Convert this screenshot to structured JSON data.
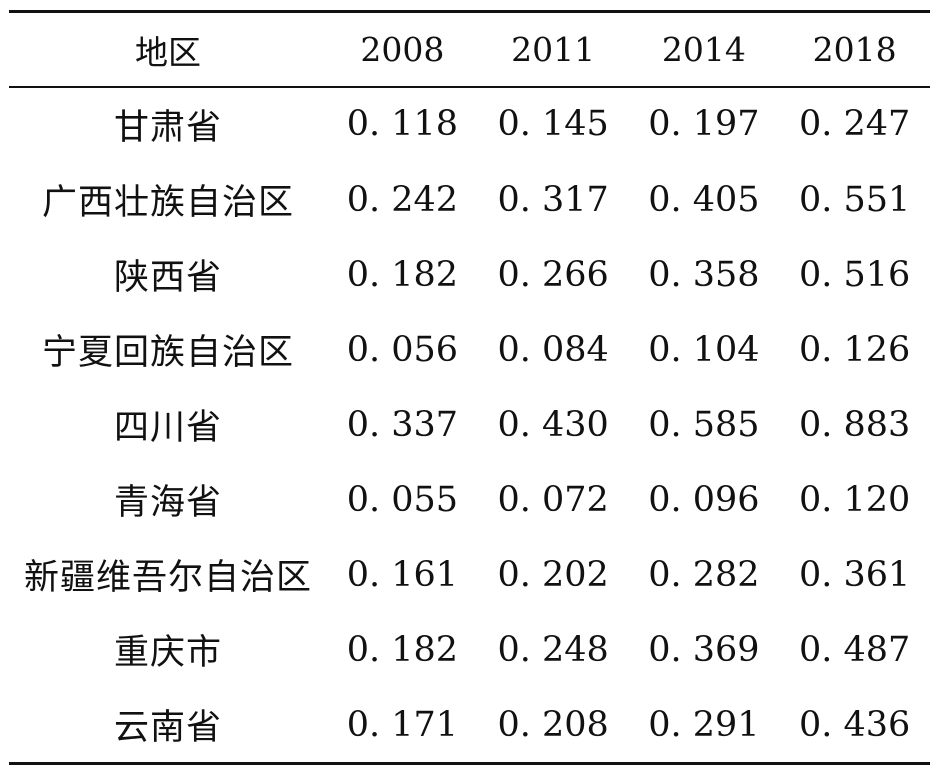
{
  "table": {
    "columns": [
      "地区",
      "2008",
      "2011",
      "2014",
      "2018"
    ],
    "rows": [
      [
        "甘肃省",
        "0. 118",
        "0. 145",
        "0. 197",
        "0. 247"
      ],
      [
        "广西壮族自治区",
        "0. 242",
        "0. 317",
        "0. 405",
        "0. 551"
      ],
      [
        "陕西省",
        "0. 182",
        "0. 266",
        "0. 358",
        "0. 516"
      ],
      [
        "宁夏回族自治区",
        "0. 056",
        "0. 084",
        "0. 104",
        "0. 126"
      ],
      [
        "四川省",
        "0. 337",
        "0. 430",
        "0. 585",
        "0. 883"
      ],
      [
        "青海省",
        "0. 055",
        "0. 072",
        "0. 096",
        "0. 120"
      ],
      [
        "新疆维吾尔自治区",
        "0. 161",
        "0. 202",
        "0. 282",
        "0. 361"
      ],
      [
        "重庆市",
        "0. 182",
        "0. 248",
        "0. 369",
        "0. 487"
      ],
      [
        "云南省",
        "0. 171",
        "0. 208",
        "0. 291",
        "0. 436"
      ]
    ]
  }
}
